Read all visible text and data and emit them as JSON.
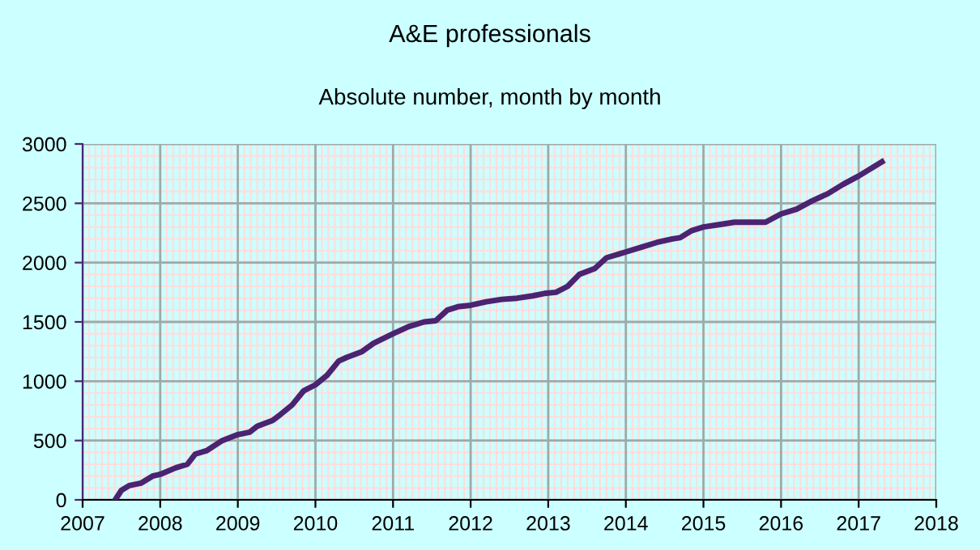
{
  "chart_data": {
    "type": "line",
    "title": "A&E professionals",
    "subtitle": "Absolute number, month by month",
    "x": [
      2007.42,
      2007.5,
      2007.6,
      2007.75,
      2007.9,
      2008.0,
      2008.2,
      2008.35,
      2008.45,
      2008.6,
      2008.8,
      2009.0,
      2009.15,
      2009.25,
      2009.45,
      2009.55,
      2009.7,
      2009.85,
      2010.0,
      2010.15,
      2010.3,
      2010.4,
      2010.6,
      2010.75,
      2011.0,
      2011.2,
      2011.4,
      2011.55,
      2011.7,
      2011.85,
      2012.0,
      2012.2,
      2012.4,
      2012.6,
      2012.8,
      2012.95,
      2013.1,
      2013.25,
      2013.4,
      2013.6,
      2013.75,
      2014.0,
      2014.2,
      2014.4,
      2014.6,
      2014.7,
      2014.85,
      2015.0,
      2015.2,
      2015.4,
      2015.8,
      2016.0,
      2016.2,
      2016.4,
      2016.6,
      2016.8,
      2017.0,
      2017.3
    ],
    "series": [
      {
        "color": "#4b2370",
        "values": [
          0,
          80,
          120,
          140,
          200,
          215,
          270,
          300,
          385,
          415,
          500,
          550,
          570,
          620,
          670,
          720,
          800,
          920,
          970,
          1050,
          1170,
          1200,
          1250,
          1320,
          1400,
          1460,
          1500,
          1510,
          1600,
          1630,
          1640,
          1670,
          1690,
          1700,
          1720,
          1740,
          1750,
          1800,
          1900,
          1950,
          2040,
          2090,
          2130,
          2170,
          2200,
          2210,
          2270,
          2300,
          2320,
          2340,
          2340,
          2410,
          2450,
          2520,
          2580,
          2660,
          2730,
          2850
        ]
      }
    ],
    "xlim": [
      2007,
      2018
    ],
    "xticks": [
      2007,
      2008,
      2009,
      2010,
      2011,
      2012,
      2013,
      2014,
      2015,
      2016,
      2017,
      2018
    ],
    "ylim": [
      0,
      3000
    ],
    "yticks": [
      0,
      500,
      1000,
      1500,
      2000,
      2500,
      3000
    ],
    "grid": true,
    "marker": "none",
    "line_style": "solid"
  }
}
